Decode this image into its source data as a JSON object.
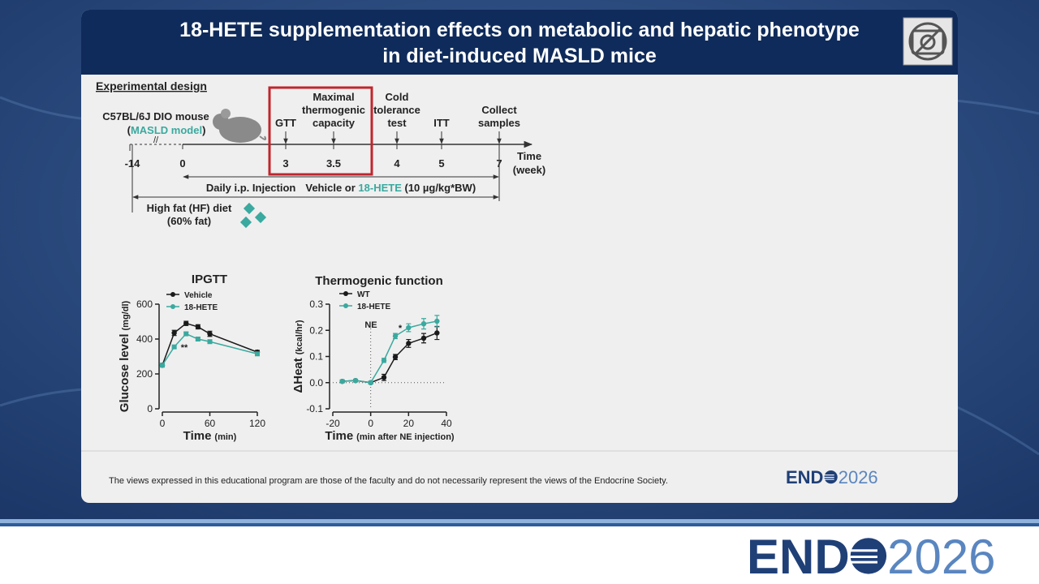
{
  "header": {
    "title_lines": [
      "18-HETE supplementation effects on metabolic and hepatic phenotype",
      "in diet-induced MASLD mice"
    ]
  },
  "design": {
    "heading": "Experimental design",
    "mouse_label": "C57BL/6J DIO mouse",
    "model": [
      "(",
      "MASLD model",
      ")"
    ],
    "axis_break": "//",
    "ticks": [
      "-14",
      "0",
      "3",
      "3.5",
      "4",
      "5",
      "7"
    ],
    "events": [
      {
        "lines": [
          "GTT"
        ]
      },
      {
        "lines": [
          "Maximal",
          "thermogenic",
          "capacity"
        ]
      },
      {
        "lines": [
          "Cold",
          "tolerance",
          "test"
        ]
      },
      {
        "lines": [
          "ITT"
        ]
      },
      {
        "lines": [
          "Collect",
          "samples"
        ]
      }
    ],
    "axis_label": [
      "Time",
      "(week)"
    ],
    "injection": [
      "Daily i.p. Injection",
      "Vehicle or ",
      "18-HETE",
      " (10 µg/kg*BW)"
    ],
    "diet": [
      "High fat (HF) diet",
      "(60% fat)"
    ]
  },
  "chart_data": [
    {
      "type": "line",
      "title": "IPGTT",
      "x": [
        0,
        15,
        30,
        45,
        60,
        120
      ],
      "series": [
        {
          "name": "Vehicle",
          "color": "#1a1a1a",
          "values": [
            250,
            435,
            490,
            470,
            430,
            325
          ],
          "errors": [
            8,
            15,
            12,
            12,
            15,
            10
          ]
        },
        {
          "name": "18-HETE",
          "color": "#3aa99f",
          "values": [
            250,
            355,
            430,
            400,
            385,
            315
          ],
          "errors": [
            8,
            8,
            10,
            10,
            8,
            8
          ]
        }
      ],
      "xlim": [
        0,
        120
      ],
      "xticks": [
        0,
        60,
        120
      ],
      "ylim": [
        0,
        600
      ],
      "yticks": [
        0,
        200,
        400,
        600
      ],
      "x_label": [
        "Time",
        "(min)"
      ],
      "y_label": [
        "Glucose level",
        "(mg/dl)"
      ],
      "annotations": [
        "**"
      ]
    },
    {
      "type": "line",
      "title": "Thermogenic function",
      "x": [
        -15,
        -8,
        0,
        7,
        13,
        20,
        28,
        35
      ],
      "series": [
        {
          "name": "WT",
          "color": "#1a1a1a",
          "values": [
            0.005,
            0.008,
            0.0,
            0.02,
            0.098,
            0.15,
            0.17,
            0.19
          ],
          "errors": [
            0.005,
            0.005,
            0.005,
            0.012,
            0.01,
            0.015,
            0.018,
            0.025
          ]
        },
        {
          "name": "18-HETE",
          "color": "#3aa99f",
          "values": [
            0.005,
            0.008,
            0.0,
            0.085,
            0.178,
            0.21,
            0.225,
            0.235
          ],
          "errors": [
            0.005,
            0.005,
            0.005,
            0.008,
            0.01,
            0.015,
            0.02,
            0.022
          ]
        }
      ],
      "xlim": [
        -20,
        40
      ],
      "xticks": [
        -20,
        0,
        20,
        40
      ],
      "ylim": [
        -0.1,
        0.3
      ],
      "yticks": [
        -0.1,
        {
          "value": 0,
          "label": "0.0"
        },
        0.1,
        0.2,
        0.3
      ],
      "x_label": [
        "Time",
        "(min after NE injection)"
      ],
      "y_label": [
        "ΔHeat",
        "(kcal/hr)"
      ],
      "annotations": [
        "NE",
        "*"
      ]
    }
  ],
  "footer": {
    "disclaimer": "The views expressed in this educational program are those of the faculty and do not necessarily represent the views of the Endocrine Society.",
    "logo": [
      "END",
      "2026"
    ]
  },
  "banner": {
    "logo": [
      "END",
      "2026"
    ]
  }
}
